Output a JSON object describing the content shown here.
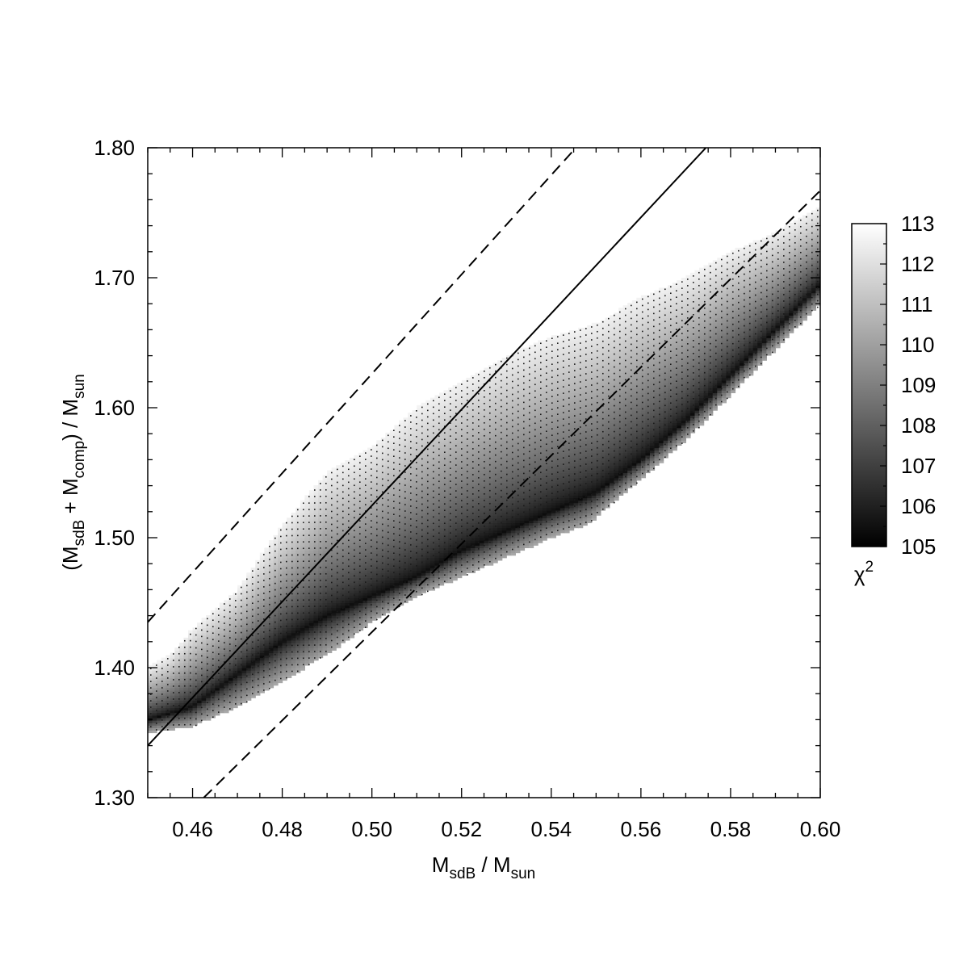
{
  "chart_data": {
    "type": "heatmap",
    "xlabel": {
      "main": "M",
      "sub1": "sdB",
      "mid": " / M",
      "sub2": "sun"
    },
    "ylabel": {
      "open": "(M",
      "sub1": "sdB",
      "mid": " + M",
      "sub2": "comp",
      "close": ") / M",
      "sub3": "sun"
    },
    "xlim": [
      0.45,
      0.6
    ],
    "ylim": [
      1.3,
      1.8
    ],
    "x_ticks": [
      "0.46",
      "0.48",
      "0.50",
      "0.52",
      "0.54",
      "0.56",
      "0.58",
      "0.60"
    ],
    "x_tick_values": [
      0.46,
      0.48,
      0.5,
      0.52,
      0.54,
      0.56,
      0.58,
      0.6
    ],
    "y_ticks": [
      "1.30",
      "1.40",
      "1.50",
      "1.60",
      "1.70",
      "1.80"
    ],
    "y_tick_values": [
      1.3,
      1.4,
      1.5,
      1.6,
      1.7,
      1.8
    ],
    "colorbar": {
      "label_base": "χ",
      "label_sup": "2",
      "min": 105,
      "max": 113,
      "ticks": [
        "113",
        "112",
        "111",
        "110",
        "109",
        "108",
        "107",
        "106",
        "105"
      ],
      "tick_values": [
        113,
        112,
        111,
        110,
        109,
        108,
        107,
        106,
        105
      ],
      "colormap": [
        "#000000",
        "#ffffff"
      ]
    },
    "region": {
      "upper_boundary": [
        [
          0.45,
          1.4
        ],
        [
          0.455,
          1.41
        ],
        [
          0.46,
          1.43
        ],
        [
          0.47,
          1.46
        ],
        [
          0.48,
          1.51
        ],
        [
          0.49,
          1.55
        ],
        [
          0.5,
          1.57
        ],
        [
          0.51,
          1.6
        ],
        [
          0.52,
          1.62
        ],
        [
          0.53,
          1.64
        ],
        [
          0.54,
          1.655
        ],
        [
          0.55,
          1.665
        ],
        [
          0.56,
          1.685
        ],
        [
          0.57,
          1.7
        ],
        [
          0.58,
          1.72
        ],
        [
          0.59,
          1.735
        ],
        [
          0.6,
          1.755
        ]
      ],
      "lower_boundary": [
        [
          0.45,
          1.35
        ],
        [
          0.46,
          1.355
        ],
        [
          0.47,
          1.37
        ],
        [
          0.48,
          1.39
        ],
        [
          0.49,
          1.41
        ],
        [
          0.5,
          1.435
        ],
        [
          0.51,
          1.455
        ],
        [
          0.52,
          1.47
        ],
        [
          0.53,
          1.485
        ],
        [
          0.54,
          1.5
        ],
        [
          0.548,
          1.51
        ],
        [
          0.56,
          1.545
        ],
        [
          0.57,
          1.575
        ],
        [
          0.58,
          1.61
        ],
        [
          0.59,
          1.645
        ],
        [
          0.6,
          1.68
        ]
      ],
      "min_valley": [
        [
          0.45,
          1.36
        ],
        [
          0.46,
          1.37
        ],
        [
          0.47,
          1.395
        ],
        [
          0.48,
          1.42
        ],
        [
          0.49,
          1.44
        ],
        [
          0.5,
          1.455
        ],
        [
          0.51,
          1.47
        ],
        [
          0.52,
          1.49
        ],
        [
          0.53,
          1.505
        ],
        [
          0.54,
          1.52
        ],
        [
          0.55,
          1.535
        ],
        [
          0.56,
          1.56
        ],
        [
          0.57,
          1.59
        ],
        [
          0.58,
          1.625
        ],
        [
          0.59,
          1.66
        ],
        [
          0.6,
          1.695
        ]
      ],
      "min_chi2": 105.3,
      "max_chi2": 113
    },
    "lines": [
      {
        "style": "solid",
        "x": [
          0.45,
          0.5745
        ],
        "y": [
          1.34,
          1.8
        ]
      },
      {
        "style": "dashed",
        "x": [
          0.45,
          0.5455
        ],
        "y": [
          1.435,
          1.8
        ]
      },
      {
        "style": "dashed",
        "x": [
          0.4625,
          0.6
        ],
        "y": [
          1.3,
          1.767
        ]
      }
    ]
  }
}
